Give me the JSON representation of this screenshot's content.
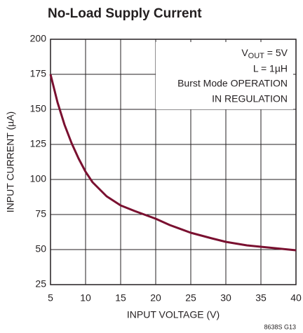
{
  "chart_data": {
    "type": "line",
    "title": "No-Load Supply Current",
    "x_label": "INPUT VOLTAGE (V)",
    "y_label": "INPUT CURRENT (µA)",
    "x": [
      5,
      6,
      7,
      8,
      9,
      10,
      11,
      12,
      13,
      15,
      17,
      20,
      22,
      25,
      28,
      30,
      33,
      35,
      38,
      40
    ],
    "values": [
      175,
      155,
      139,
      126,
      115,
      105.5,
      98,
      93,
      88,
      81.5,
      77.5,
      72,
      67.5,
      62,
      58,
      55.5,
      53,
      52,
      50.5,
      49.5
    ],
    "color": "#7a1030",
    "xlim": [
      5,
      40
    ],
    "xticks": [
      5,
      10,
      15,
      20,
      25,
      30,
      35,
      40
    ],
    "ylim": [
      25,
      200
    ],
    "yticks": [
      25,
      50,
      75,
      100,
      125,
      150,
      175,
      200
    ],
    "grid": true,
    "annotation": [
      [
        "V",
        "OUT",
        " = 5V"
      ],
      "L = 1µH",
      "Burst Mode OPERATION",
      "IN REGULATION"
    ],
    "footnote": "8638S G13"
  }
}
